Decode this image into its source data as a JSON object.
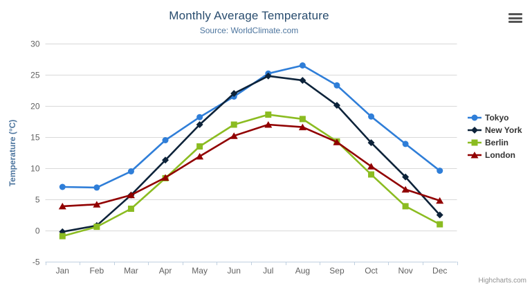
{
  "chart_data": {
    "type": "line",
    "title": "Monthly Average Temperature",
    "subtitle": "Source: WorldClimate.com",
    "categories": [
      "Jan",
      "Feb",
      "Mar",
      "Apr",
      "May",
      "Jun",
      "Jul",
      "Aug",
      "Sep",
      "Oct",
      "Nov",
      "Dec"
    ],
    "xlabel": "",
    "ylabel": "Temperature (°C)",
    "ylim": [
      -5,
      30
    ],
    "ytick_interval": 5,
    "yticks": [
      -5,
      0,
      5,
      10,
      15,
      20,
      25,
      30
    ],
    "grid": true,
    "legend_position": "right",
    "series": [
      {
        "name": "Tokyo",
        "color": "#2f7ed8",
        "marker": "circle",
        "values": [
          7.0,
          6.9,
          9.5,
          14.5,
          18.2,
          21.5,
          25.2,
          26.5,
          23.3,
          18.3,
          13.9,
          9.6
        ]
      },
      {
        "name": "New York",
        "color": "#0d233a",
        "marker": "diamond",
        "values": [
          -0.2,
          0.8,
          5.7,
          11.3,
          17.0,
          22.0,
          24.8,
          24.1,
          20.1,
          14.1,
          8.6,
          2.5
        ]
      },
      {
        "name": "Berlin",
        "color": "#8bbc21",
        "marker": "square",
        "values": [
          -0.9,
          0.6,
          3.5,
          8.4,
          13.5,
          17.0,
          18.6,
          17.9,
          14.3,
          9.0,
          3.9,
          1.0
        ]
      },
      {
        "name": "London",
        "color": "#910000",
        "marker": "triangle",
        "values": [
          3.9,
          4.2,
          5.7,
          8.5,
          11.9,
          15.2,
          17.0,
          16.6,
          14.2,
          10.3,
          6.6,
          4.8
        ]
      }
    ],
    "colors": {
      "title": "#274b6d",
      "subtitle": "#4d759e",
      "axis_label": "#606060",
      "axis_line": "#c0d0e0",
      "gridline": "#d8d8d8",
      "legend_text": "#333333",
      "credits": "#909090"
    }
  },
  "credits": {
    "label": "Highcharts.com"
  }
}
